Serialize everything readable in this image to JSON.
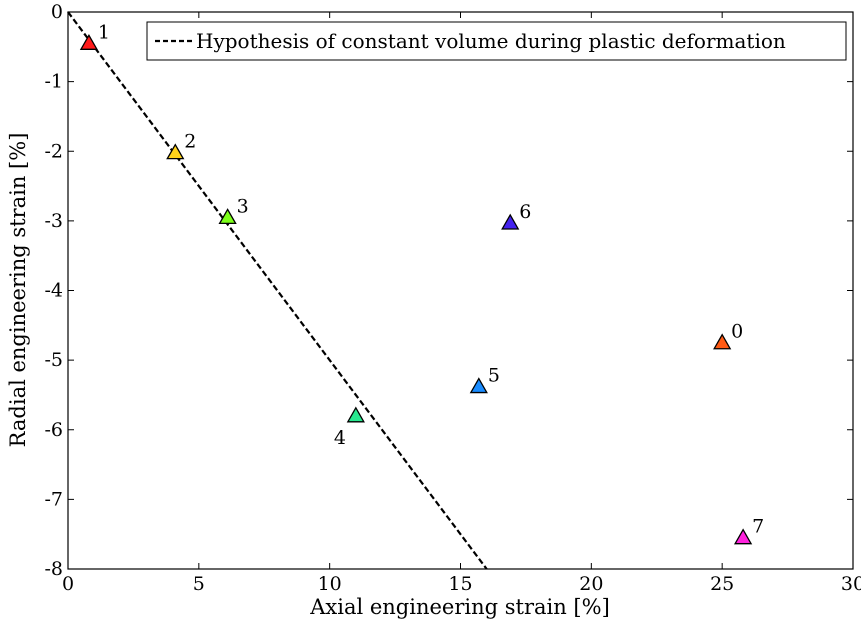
{
  "chart_data": {
    "type": "scatter",
    "xlabel": "Axial engineering strain [%]",
    "ylabel": "Radial engineering strain [%]",
    "xlim": [
      0,
      30
    ],
    "ylim": [
      -8,
      0
    ],
    "xticks": [
      "0",
      "5",
      "10",
      "15",
      "20",
      "25",
      "30"
    ],
    "yticks": [
      "0",
      "-1",
      "-2",
      "-3",
      "-4",
      "-5",
      "-6",
      "-7",
      "-8"
    ],
    "grid": false,
    "legend_position": "top-right",
    "legend": [
      {
        "label": "Hypothesis of constant volume during plastic deformation",
        "style": "dashed",
        "color": "#000000"
      }
    ],
    "reference_line": {
      "name": "Hypothesis of constant volume during plastic deformation",
      "x": [
        0,
        16
      ],
      "y": [
        0,
        -8
      ]
    },
    "points": [
      {
        "label": "0",
        "x": 25.0,
        "y": -4.75,
        "color": "#ff5a14"
      },
      {
        "label": "1",
        "x": 0.8,
        "y": -0.45,
        "color": "#ff1a1a"
      },
      {
        "label": "2",
        "x": 4.1,
        "y": -2.02,
        "color": "#ffd21a"
      },
      {
        "label": "3",
        "x": 6.1,
        "y": -2.95,
        "color": "#7dff1a"
      },
      {
        "label": "4",
        "x": 11.0,
        "y": -5.8,
        "color": "#27e88f"
      },
      {
        "label": "5",
        "x": 15.7,
        "y": -5.38,
        "color": "#1a8cff"
      },
      {
        "label": "6",
        "x": 16.9,
        "y": -3.03,
        "color": "#4422ee"
      },
      {
        "label": "7",
        "x": 25.8,
        "y": -7.55,
        "color": "#ff22dd"
      }
    ]
  }
}
